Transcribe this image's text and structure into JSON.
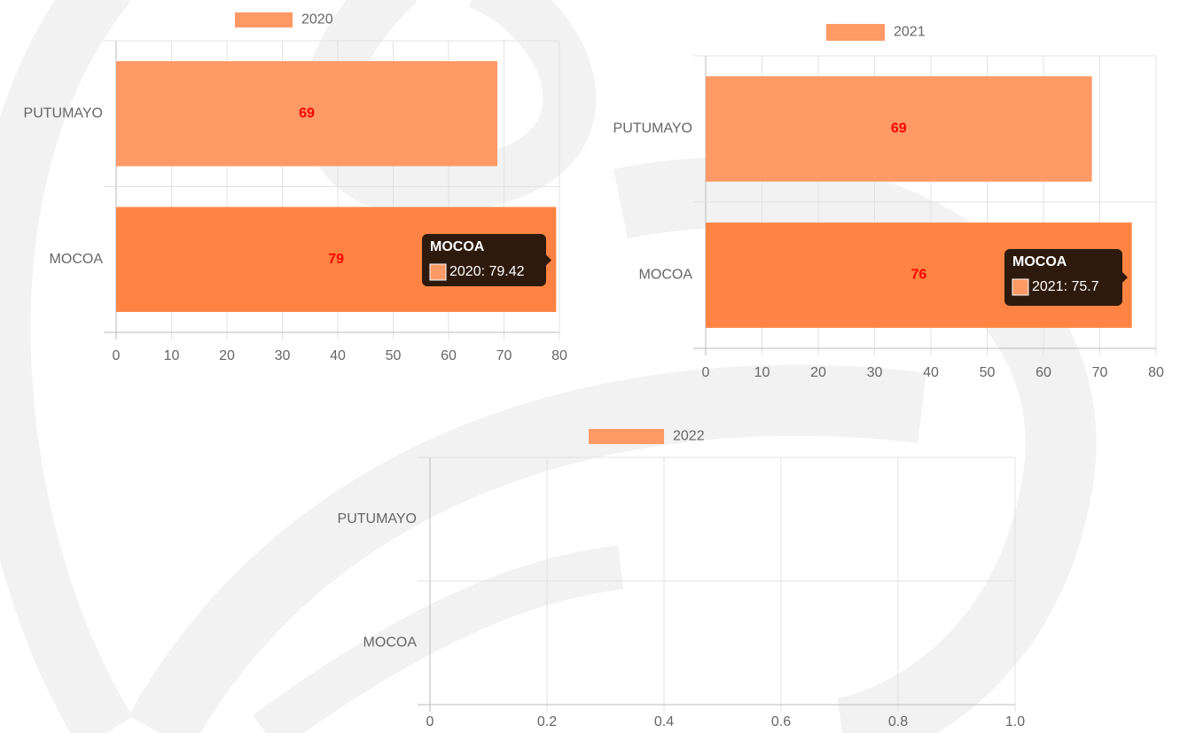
{
  "chart_data": [
    {
      "type": "bar",
      "orientation": "horizontal",
      "categories": [
        "PUTUMAYO",
        "MOCOA"
      ],
      "series": [
        {
          "name": "2020",
          "color": "#ff9966",
          "colors": [
            "#ff9966",
            "#ff8444"
          ],
          "values": [
            68.8,
            79.42
          ],
          "value_labels": [
            "69",
            "79"
          ]
        }
      ],
      "xlim": [
        0,
        80
      ],
      "xticks": [
        0,
        10,
        20,
        30,
        40,
        50,
        60,
        70,
        80
      ],
      "grid": true,
      "tooltip": {
        "title": "MOCOA",
        "label": "2020: 79.42"
      }
    },
    {
      "type": "bar",
      "orientation": "horizontal",
      "categories": [
        "PUTUMAYO",
        "MOCOA"
      ],
      "series": [
        {
          "name": "2021",
          "color": "#ff9966",
          "colors": [
            "#ff9966",
            "#ff8444"
          ],
          "values": [
            68.6,
            75.7
          ],
          "value_labels": [
            "69",
            "76"
          ]
        }
      ],
      "xlim": [
        0,
        80
      ],
      "xticks": [
        0,
        10,
        20,
        30,
        40,
        50,
        60,
        70,
        80
      ],
      "grid": true,
      "tooltip": {
        "title": "MOCOA",
        "label": "2021: 75.7"
      }
    },
    {
      "type": "bar",
      "orientation": "horizontal",
      "categories": [
        "PUTUMAYO",
        "MOCOA"
      ],
      "series": [
        {
          "name": "2022",
          "color": "#ff9966",
          "values": [
            null,
            null
          ]
        }
      ],
      "xlim": [
        0,
        1.0
      ],
      "xticks": [
        0,
        0.2,
        0.4,
        0.6,
        0.8,
        {
          "value": 1.0,
          "label": "1.0"
        }
      ],
      "grid": true
    }
  ]
}
